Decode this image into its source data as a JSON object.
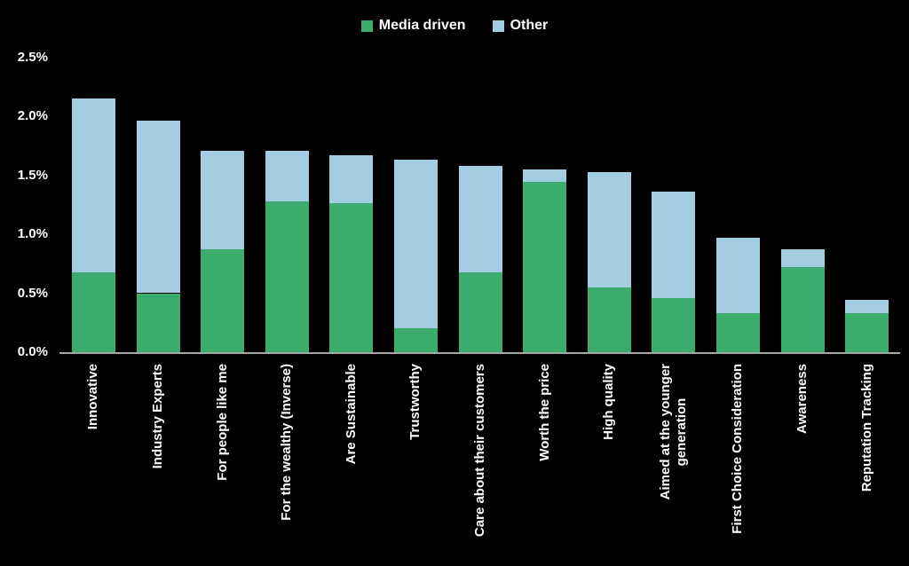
{
  "page": {
    "background_color": "#000000",
    "text_color": "#ffffff"
  },
  "legend": {
    "position": "top-center",
    "items": [
      {
        "label": "Media driven",
        "color": "#3BAC6D"
      },
      {
        "label": "Other",
        "color": "#A5CDE2"
      }
    ]
  },
  "chart_data": {
    "type": "bar",
    "stacked": true,
    "title": "",
    "xlabel": "",
    "ylabel": "",
    "value_unit": "%",
    "ylim": [
      0,
      2.5
    ],
    "yticks": [
      "0.0%",
      "0.5%",
      "1.0%",
      "1.5%",
      "2.0%",
      "2.5%"
    ],
    "grid": false,
    "legend_position": "top-center",
    "axis_line_color": "#A6A6A6",
    "categories": [
      "Innovative",
      "Industry Experts",
      "For people like me",
      "For the wealthy (Inverse)",
      "Are Sustainable",
      "Trustworthy",
      "Care about their customers",
      "Worth the price",
      "High quality",
      "Aimed at the younger\ngeneration",
      "First Choice Consideration",
      "Awareness",
      "Reputation Tracking"
    ],
    "series": [
      {
        "name": "Media driven",
        "color": "#3BAC6D",
        "values": [
          0.68,
          0.5,
          0.87,
          1.28,
          1.26,
          0.2,
          0.68,
          1.44,
          0.55,
          0.46,
          0.33,
          0.72,
          0.33
        ]
      },
      {
        "name": "Other",
        "color": "#A5CDE2",
        "values": [
          1.47,
          1.46,
          0.84,
          0.43,
          0.41,
          1.43,
          0.9,
          0.11,
          0.98,
          0.9,
          0.64,
          0.15,
          0.11
        ]
      }
    ]
  }
}
